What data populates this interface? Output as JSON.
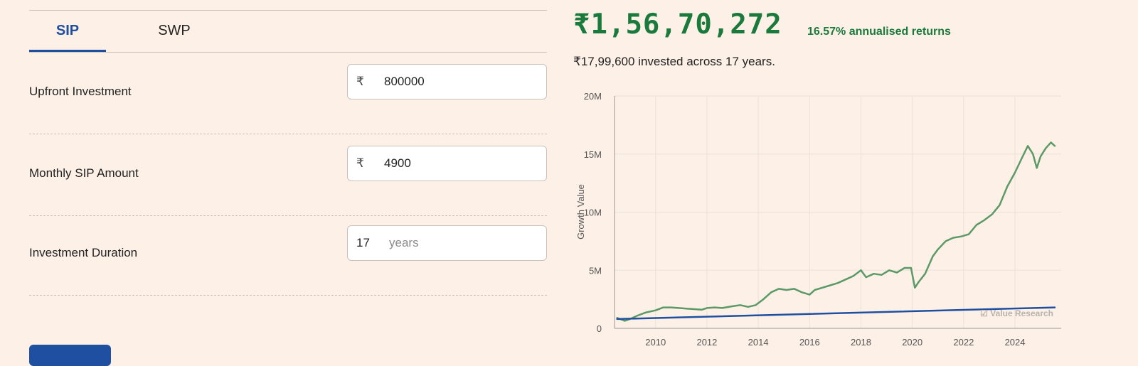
{
  "tabs": [
    {
      "label": "SIP",
      "active": true
    },
    {
      "label": "SWP",
      "active": false
    }
  ],
  "form": {
    "upfront": {
      "label": "Upfront Investment",
      "prefix": "₹",
      "value": "800000"
    },
    "monthly": {
      "label": "Monthly SIP Amount",
      "prefix": "₹",
      "value": "4900"
    },
    "duration": {
      "label": "Investment Duration",
      "value": "17",
      "suffix": "years"
    }
  },
  "result": {
    "amount": "₹1,56,70,272",
    "returns": "16.57% annualised returns",
    "invested": "₹17,99,600 invested across 17 years."
  },
  "colors": {
    "growth_line": "#5b9a66",
    "invested_line": "#1f4fa0",
    "accent_green": "#1a7a3c",
    "accent_blue": "#1f4fa0"
  },
  "chart_data": {
    "type": "line",
    "ylabel": "Growth Value",
    "xlabel": "",
    "y_ticks": [
      "0",
      "5M",
      "10M",
      "15M",
      "20M"
    ],
    "x_ticks": [
      "2010",
      "2012",
      "2014",
      "2016",
      "2018",
      "2020",
      "2022",
      "2024"
    ],
    "xlim": [
      2008.4,
      2025.8
    ],
    "ylim": [
      0,
      20000000
    ],
    "grid": true,
    "watermark": "☑ Value Research",
    "series": [
      {
        "key": "growth",
        "x": [
          2008.5,
          2008.8,
          2009.0,
          2009.3,
          2009.6,
          2010.0,
          2010.3,
          2010.6,
          2010.9,
          2011.2,
          2011.5,
          2011.8,
          2012.0,
          2012.3,
          2012.6,
          2013.0,
          2013.3,
          2013.6,
          2013.9,
          2014.2,
          2014.5,
          2014.8,
          2015.1,
          2015.4,
          2015.7,
          2016.0,
          2016.2,
          2016.5,
          2016.8,
          2017.1,
          2017.4,
          2017.7,
          2018.0,
          2018.2,
          2018.5,
          2018.8,
          2019.1,
          2019.4,
          2019.7,
          2019.95,
          2020.1,
          2020.25,
          2020.5,
          2020.8,
          2021.0,
          2021.3,
          2021.6,
          2021.9,
          2022.2,
          2022.5,
          2022.8,
          2023.1,
          2023.4,
          2023.7,
          2024.0,
          2024.3,
          2024.5,
          2024.7,
          2024.85,
          2025.0,
          2025.2,
          2025.4,
          2025.55
        ],
        "values": [
          900000,
          650000,
          800000,
          1100000,
          1350000,
          1550000,
          1800000,
          1800000,
          1750000,
          1700000,
          1650000,
          1600000,
          1750000,
          1800000,
          1750000,
          1900000,
          2000000,
          1850000,
          2000000,
          2500000,
          3100000,
          3400000,
          3300000,
          3400000,
          3100000,
          2900000,
          3300000,
          3500000,
          3700000,
          3900000,
          4200000,
          4500000,
          5000000,
          4400000,
          4700000,
          4600000,
          5000000,
          4800000,
          5200000,
          5200000,
          3500000,
          4000000,
          4700000,
          6200000,
          6800000,
          7500000,
          7800000,
          7900000,
          8100000,
          8900000,
          9300000,
          9800000,
          10600000,
          12200000,
          13400000,
          14800000,
          15700000,
          15000000,
          13800000,
          14800000,
          15500000,
          16000000,
          15700000
        ]
      },
      {
        "key": "invested",
        "x": [
          2008.5,
          2025.55
        ],
        "values": [
          800000,
          1799600
        ]
      }
    ]
  }
}
